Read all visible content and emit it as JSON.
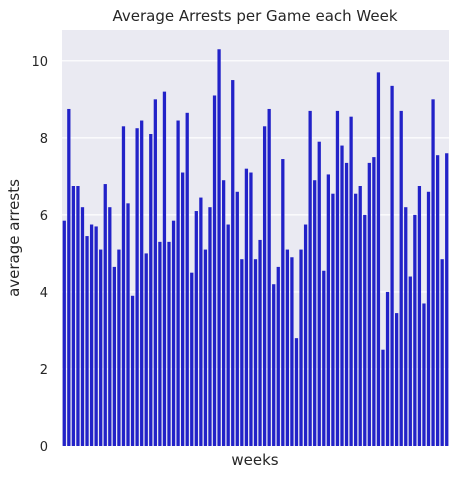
{
  "chart_data": {
    "type": "bar",
    "title": "Average Arrests per Game each Week",
    "xlabel": "weeks",
    "ylabel": "average arrests",
    "ylim": [
      0,
      10.8
    ],
    "yticks": [
      0,
      2,
      4,
      6,
      8,
      10
    ],
    "ytick_labels": [
      "0",
      "2",
      "4",
      "6",
      "8",
      "10"
    ],
    "grid": true,
    "legend": "none",
    "colors": {
      "bar": "#2222c8",
      "plot_bg": "#eaeaf2",
      "grid": "#ffffff",
      "text": "#262626"
    },
    "values": [
      5.85,
      8.75,
      6.75,
      6.75,
      6.2,
      5.45,
      5.75,
      5.7,
      5.1,
      6.8,
      6.2,
      4.65,
      5.1,
      8.3,
      6.3,
      3.9,
      8.25,
      8.45,
      5.0,
      8.1,
      9.0,
      5.3,
      9.2,
      5.3,
      5.85,
      8.45,
      7.1,
      8.65,
      4.5,
      6.1,
      6.45,
      5.1,
      6.2,
      9.1,
      10.3,
      6.9,
      5.75,
      9.5,
      6.6,
      4.85,
      7.2,
      7.1,
      4.85,
      5.35,
      8.3,
      8.75,
      4.2,
      4.65,
      7.45,
      5.1,
      4.9,
      2.8,
      5.1,
      5.75,
      8.7,
      6.9,
      7.9,
      4.55,
      7.05,
      6.55,
      8.7,
      7.8,
      7.35,
      8.55,
      6.55,
      6.75,
      6.0,
      7.35,
      7.5,
      9.7,
      2.5,
      4.0,
      9.35,
      3.45,
      8.7,
      6.2,
      4.4,
      6.0,
      6.75,
      3.7,
      6.6,
      9.0,
      7.55,
      4.85,
      7.6
    ]
  }
}
